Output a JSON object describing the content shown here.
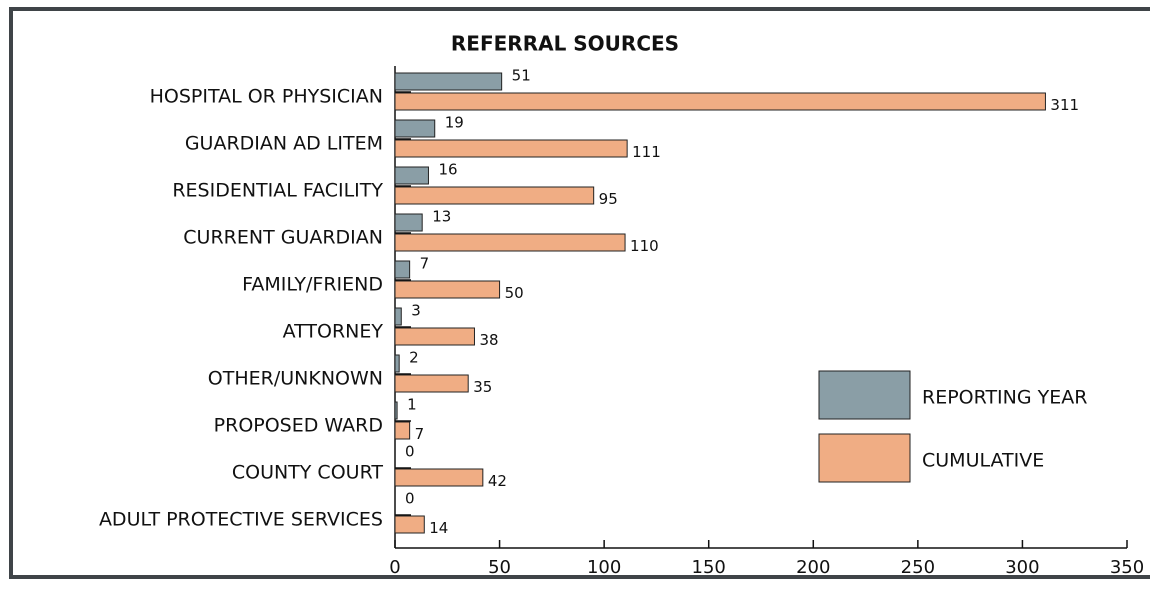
{
  "chart_data": {
    "type": "bar",
    "orientation": "horizontal",
    "title": "REFERRAL SOURCES",
    "categories": [
      "HOSPITAL OR PHYSICIAN",
      "GUARDIAN AD LITEM",
      "RESIDENTIAL FACILITY",
      "CURRENT GUARDIAN",
      "FAMILY/FRIEND",
      "ATTORNEY",
      "OTHER/UNKNOWN",
      "PROPOSED WARD",
      "COUNTY COURT",
      "ADULT PROTECTIVE SERVICES"
    ],
    "series": [
      {
        "name": "REPORTING YEAR",
        "color": "#8a9ea6",
        "values": [
          51,
          19,
          16,
          13,
          7,
          3,
          2,
          1,
          0,
          0
        ]
      },
      {
        "name": "CUMULATIVE",
        "color": "#f0ad84",
        "values": [
          311,
          111,
          95,
          110,
          50,
          38,
          35,
          7,
          42,
          14
        ]
      }
    ],
    "xlim": [
      0,
      350
    ],
    "xticks": [
      0,
      50,
      100,
      150,
      200,
      250,
      300,
      350
    ],
    "legend": "right"
  }
}
